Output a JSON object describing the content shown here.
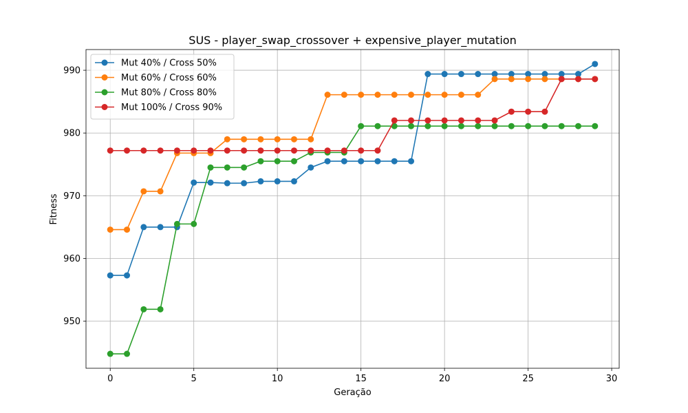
{
  "chart_data": {
    "type": "line",
    "title": "SUS - player_swap_crossover + expensive_player_mutation",
    "xlabel": "Geração",
    "ylabel": "Fitness",
    "xlim": [
      -1.45,
      30.45
    ],
    "ylim": [
      942.5,
      993.3
    ],
    "xticks": [
      0,
      5,
      10,
      15,
      20,
      25,
      30
    ],
    "yticks": [
      950,
      960,
      970,
      980,
      990
    ],
    "grid": true,
    "legend_position": "top-left",
    "x": [
      0,
      1,
      2,
      3,
      4,
      5,
      6,
      7,
      8,
      9,
      10,
      11,
      12,
      13,
      14,
      15,
      16,
      17,
      18,
      19,
      20,
      21,
      22,
      23,
      24,
      25,
      26,
      27,
      28,
      29
    ],
    "series": [
      {
        "name": "Mut 40% / Cross 50%",
        "color": "#1f77b4",
        "values": [
          957.3,
          957.3,
          965.0,
          965.0,
          965.0,
          972.1,
          972.1,
          972.0,
          972.0,
          972.3,
          972.3,
          972.3,
          974.5,
          975.5,
          975.5,
          975.5,
          975.5,
          975.5,
          975.5,
          989.4,
          989.4,
          989.4,
          989.4,
          989.4,
          989.4,
          989.4,
          989.4,
          989.4,
          989.4,
          991.0
        ]
      },
      {
        "name": "Mut 60% / Cross 60%",
        "color": "#ff7f0e",
        "values": [
          964.6,
          964.6,
          970.7,
          970.7,
          976.8,
          976.8,
          976.8,
          979.0,
          979.0,
          979.0,
          979.0,
          979.0,
          979.0,
          986.1,
          986.1,
          986.1,
          986.1,
          986.1,
          986.1,
          986.1,
          986.1,
          986.1,
          986.1,
          988.6,
          988.6,
          988.6,
          988.6,
          988.6,
          988.6,
          988.6
        ]
      },
      {
        "name": "Mut 80% / Cross 80%",
        "color": "#2ca02c",
        "values": [
          944.8,
          944.8,
          951.9,
          951.9,
          965.5,
          965.5,
          974.5,
          974.5,
          974.5,
          975.5,
          975.5,
          975.5,
          976.9,
          976.9,
          976.9,
          981.1,
          981.1,
          981.1,
          981.1,
          981.1,
          981.1,
          981.1,
          981.1,
          981.1,
          981.1,
          981.1,
          981.1,
          981.1,
          981.1,
          981.1
        ]
      },
      {
        "name": "Mut 100% / Cross 90%",
        "color": "#d62728",
        "values": [
          977.2,
          977.2,
          977.2,
          977.2,
          977.2,
          977.2,
          977.2,
          977.2,
          977.2,
          977.2,
          977.2,
          977.2,
          977.2,
          977.2,
          977.2,
          977.2,
          977.2,
          982.0,
          982.0,
          982.0,
          982.0,
          982.0,
          982.0,
          982.0,
          983.4,
          983.4,
          983.4,
          988.6,
          988.6,
          988.6
        ]
      }
    ]
  }
}
